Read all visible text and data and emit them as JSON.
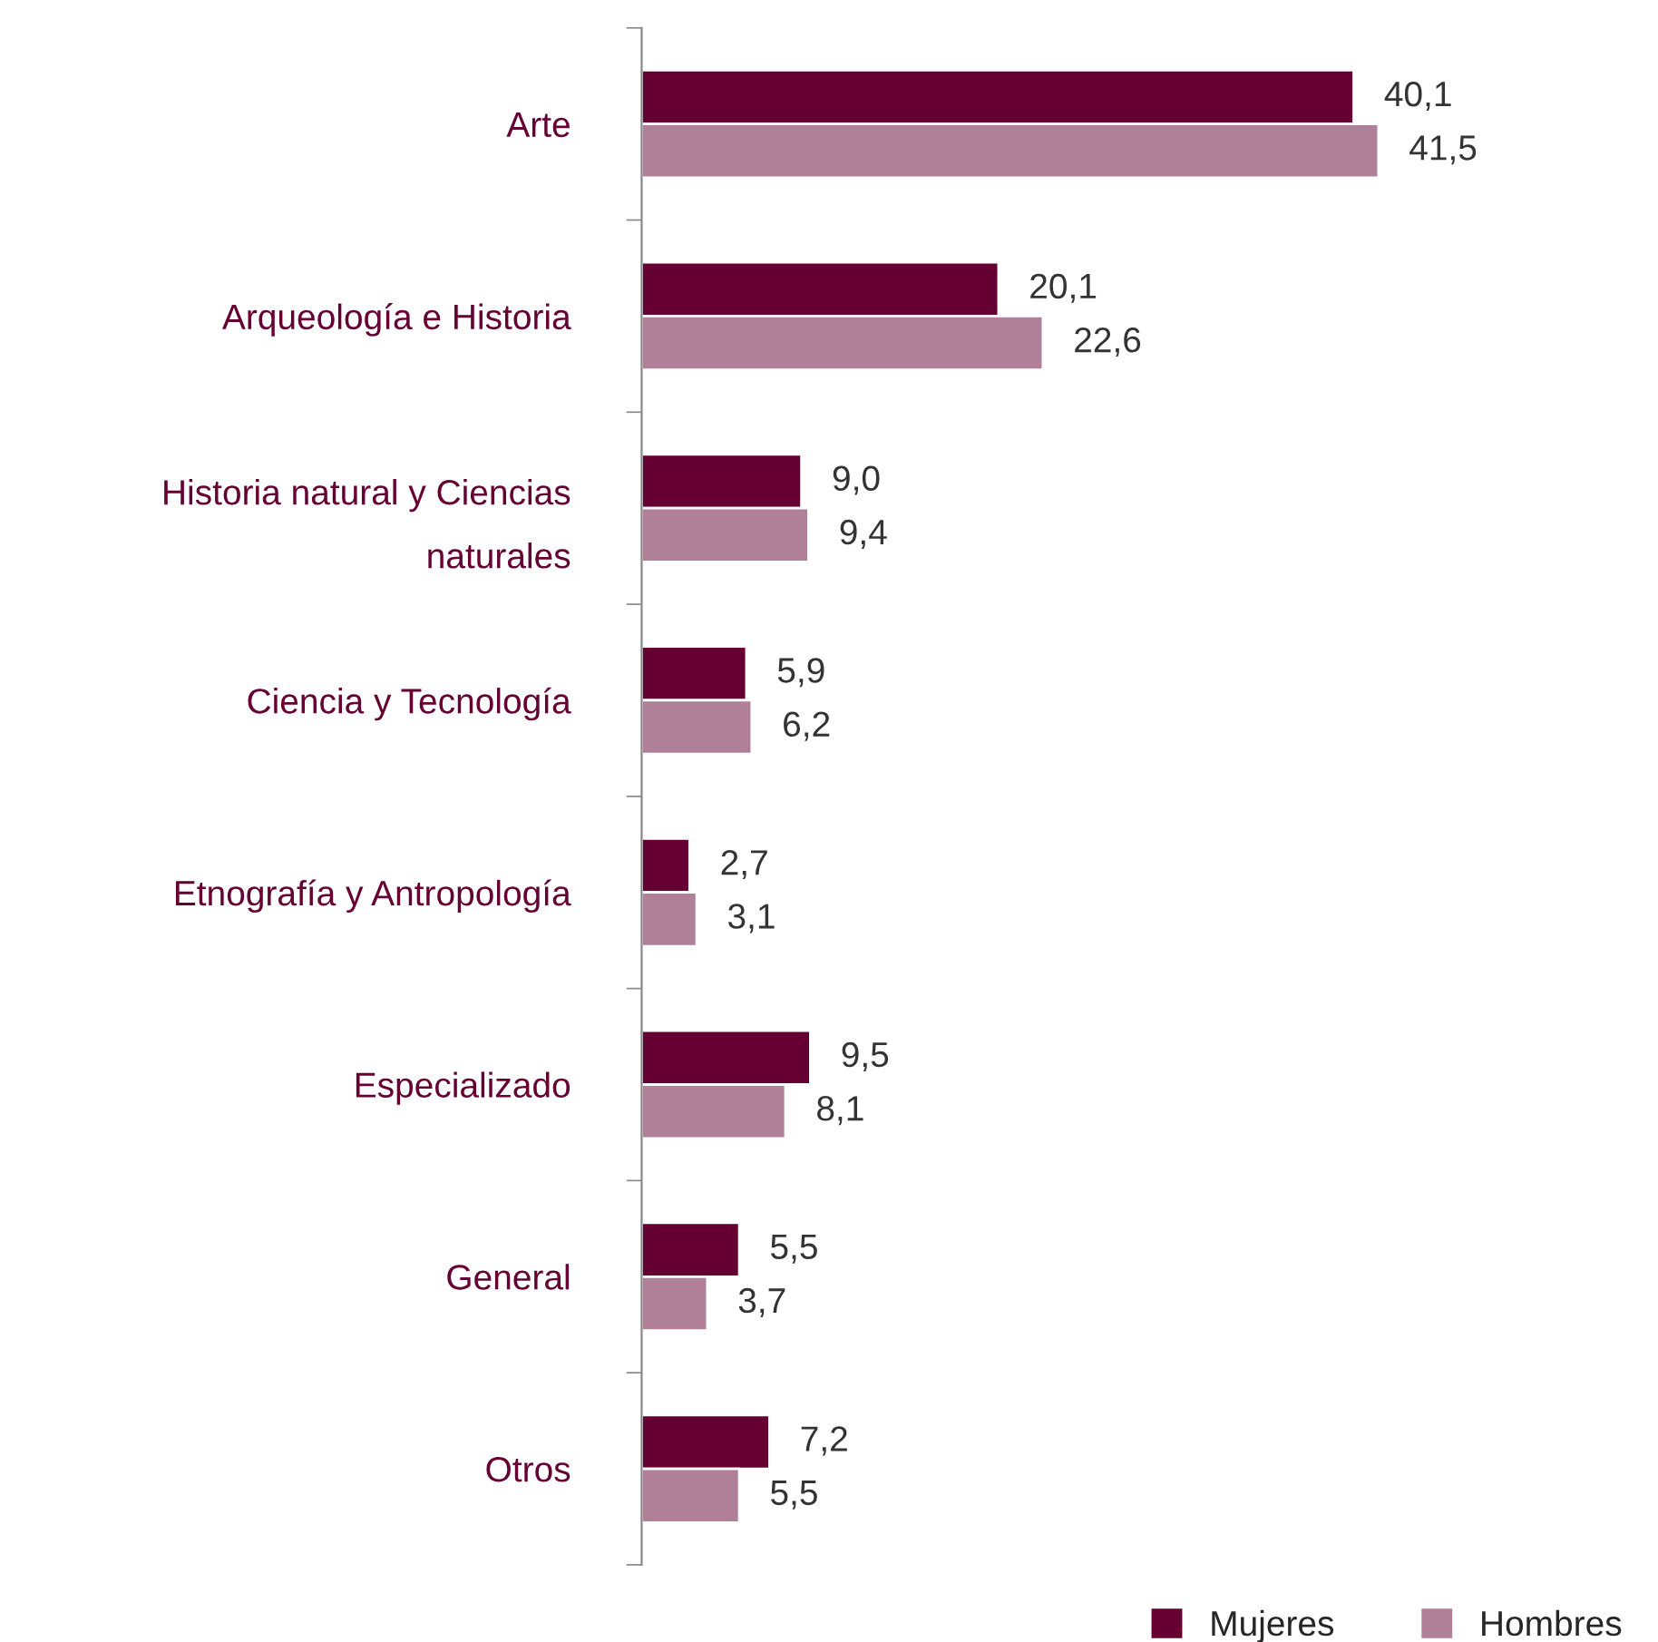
{
  "chart_data": {
    "type": "bar",
    "orientation": "horizontal",
    "legend": "bottom right",
    "grid": false,
    "categories": [
      "Arte",
      "Arqueología e Historia",
      "Historia natural y Ciencias\nnaturales",
      "Ciencia y Tecnología",
      "Etnografía y Antropología",
      "Especializado",
      "General",
      "Otros"
    ],
    "series": [
      {
        "name": "Mujeres",
        "color": "#660033",
        "values": [
          40.1,
          20.1,
          9.0,
          5.9,
          2.7,
          9.5,
          5.5,
          7.2
        ],
        "value_labels": [
          "40,1",
          "20,1",
          "9,0",
          "5,9",
          "2,7",
          "9,5",
          "5,5",
          "7,2"
        ]
      },
      {
        "name": "Hombres",
        "color": "#b07f98",
        "values": [
          41.5,
          22.6,
          9.4,
          6.2,
          3.1,
          8.1,
          3.7,
          5.5
        ],
        "value_labels": [
          "41,5",
          "22,6",
          "9,4",
          "6,2",
          "3,1",
          "8,1",
          "3,7",
          "5,5"
        ]
      }
    ]
  }
}
